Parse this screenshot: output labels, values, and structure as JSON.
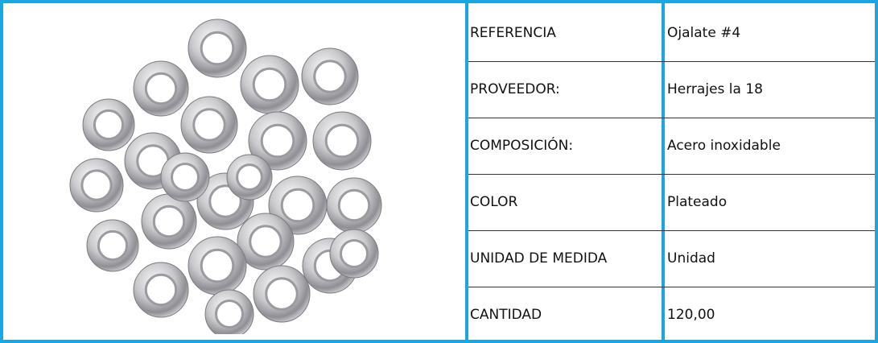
{
  "table": {
    "rows": [
      [
        "REFERENCIA",
        "Ojalate #4"
      ],
      [
        "PROVEEDOR:",
        "Herrajes la 18"
      ],
      [
        "COMPOSICIÓN:",
        "Acero inoxidable"
      ],
      [
        "COLOR",
        "Plateado"
      ],
      [
        "UNIDAD DE MEDIDA",
        "Unidad"
      ],
      [
        "CANTIDAD",
        "120,00"
      ]
    ]
  }
}
